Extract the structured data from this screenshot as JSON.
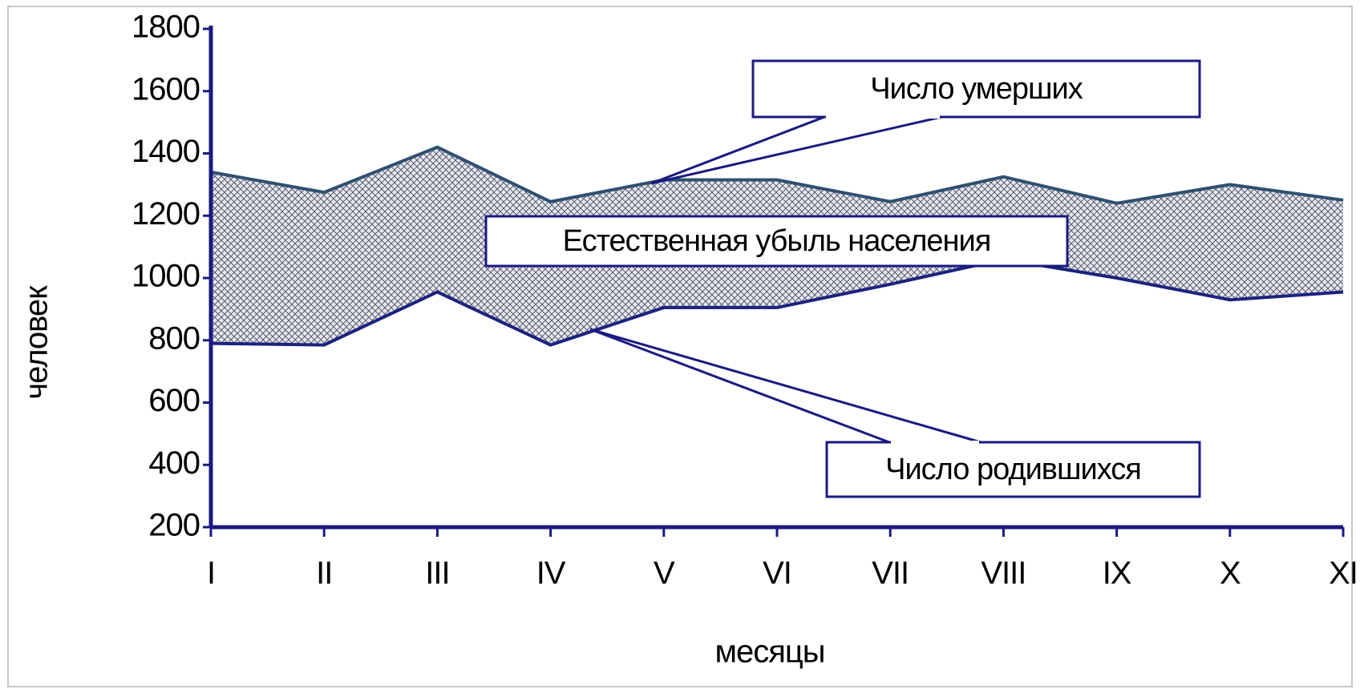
{
  "chart_data": {
    "type": "area_band",
    "xlabel": "месяцы",
    "ylabel": "человек",
    "categories": [
      "I",
      "II",
      "III",
      "IV",
      "V",
      "VI",
      "VII",
      "VIII",
      "IX",
      "X",
      "XI"
    ],
    "series": [
      {
        "name": "Число умерших",
        "color": "#2f5070",
        "values": [
          1340,
          1275,
          1420,
          1245,
          1315,
          1315,
          1245,
          1325,
          1240,
          1300,
          1250
        ]
      },
      {
        "name": "Число родившихся",
        "color": "#1a237e",
        "values": [
          790,
          785,
          955,
          785,
          905,
          905,
          980,
          1060,
          1000,
          930,
          955
        ]
      }
    ],
    "band_label": "Естественная убыль населения",
    "ylim": [
      200,
      1800
    ],
    "yticks": [
      200,
      400,
      600,
      800,
      1000,
      1200,
      1400,
      1600,
      1800
    ],
    "axis_color": "#1a1a80"
  }
}
